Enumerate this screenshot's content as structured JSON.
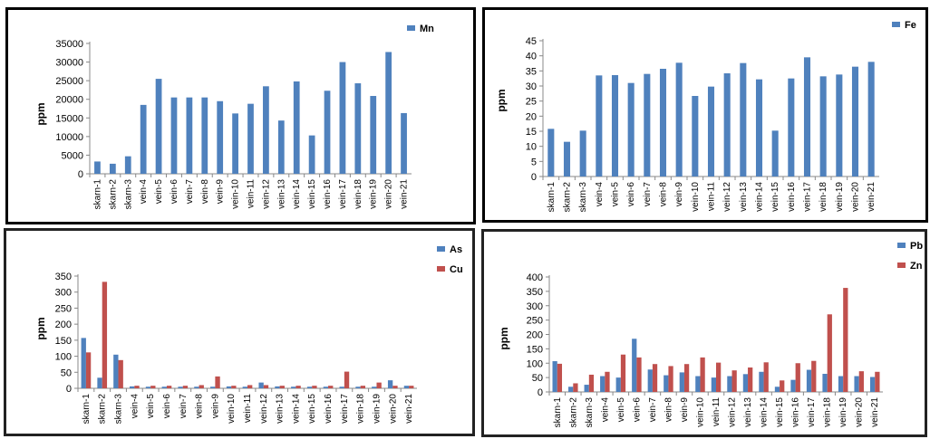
{
  "categories": [
    "skarn-1",
    "skarn-2",
    "skarn-3",
    "vein-4",
    "vein-5",
    "vein-6",
    "vein-7",
    "vein-8",
    "vein-9",
    "vein-10",
    "vein-11",
    "vein-12",
    "vein-13",
    "vein-14",
    "vein-15",
    "vein-16",
    "vein-17",
    "vein-18",
    "vein-19",
    "vein-20",
    "vein-21"
  ],
  "chart_data": [
    {
      "type": "bar",
      "ylabel": "ppm",
      "ylim": [
        0,
        35000
      ],
      "yticks": [
        0,
        5000,
        10000,
        15000,
        20000,
        25000,
        30000,
        35000
      ],
      "legend": "top-right",
      "series": [
        {
          "name": "Mn",
          "color": "#4f81bd",
          "values": [
            3300,
            2700,
            4700,
            18500,
            25500,
            20500,
            20500,
            20500,
            19500,
            16200,
            18800,
            23500,
            14300,
            24800,
            10300,
            22300,
            30000,
            24300,
            20900,
            32700,
            16300
          ]
        }
      ]
    },
    {
      "type": "bar",
      "ylabel": "ppm",
      "ylim": [
        0,
        45
      ],
      "yticks": [
        0,
        5,
        10,
        15,
        20,
        25,
        30,
        35,
        40,
        45
      ],
      "legend": "top-right",
      "series": [
        {
          "name": "Fe",
          "color": "#4f81bd",
          "values": [
            15.8,
            11.5,
            15.2,
            33.5,
            33.6,
            31,
            34,
            35.7,
            37.7,
            26.7,
            29.8,
            34.2,
            37.6,
            32.2,
            15.2,
            32.5,
            39.5,
            33.2,
            33.8,
            36.4,
            38
          ]
        }
      ]
    },
    {
      "type": "bar",
      "ylabel": "ppm",
      "ylim": [
        0,
        350
      ],
      "yticks": [
        0,
        50,
        100,
        150,
        200,
        250,
        300,
        350
      ],
      "legend": "top-right",
      "series": [
        {
          "name": "As",
          "color": "#4f81bd",
          "values": [
            157,
            33,
            105,
            6,
            5,
            5,
            5,
            5,
            5,
            6,
            5,
            18,
            6,
            5,
            5,
            5,
            5,
            5,
            5,
            25,
            8
          ]
        },
        {
          "name": "Cu",
          "color": "#c0504d",
          "values": [
            112,
            332,
            88,
            8,
            8,
            8,
            8,
            10,
            37,
            8,
            10,
            10,
            8,
            8,
            8,
            8,
            52,
            8,
            18,
            8,
            8
          ]
        }
      ]
    },
    {
      "type": "bar",
      "ylabel": "ppm",
      "ylim": [
        0,
        400
      ],
      "yticks": [
        0,
        50,
        100,
        150,
        200,
        250,
        300,
        350,
        400
      ],
      "legend": "top-right",
      "series": [
        {
          "name": "Pb",
          "color": "#4f81bd",
          "values": [
            107,
            18,
            25,
            55,
            50,
            185,
            78,
            58,
            68,
            55,
            50,
            55,
            62,
            70,
            18,
            42,
            77,
            63,
            55,
            55,
            52
          ]
        },
        {
          "name": "Zn",
          "color": "#c0504d",
          "values": [
            98,
            30,
            60,
            70,
            130,
            120,
            97,
            90,
            97,
            120,
            102,
            75,
            85,
            103,
            40,
            100,
            108,
            270,
            362,
            72,
            70
          ]
        }
      ]
    }
  ]
}
